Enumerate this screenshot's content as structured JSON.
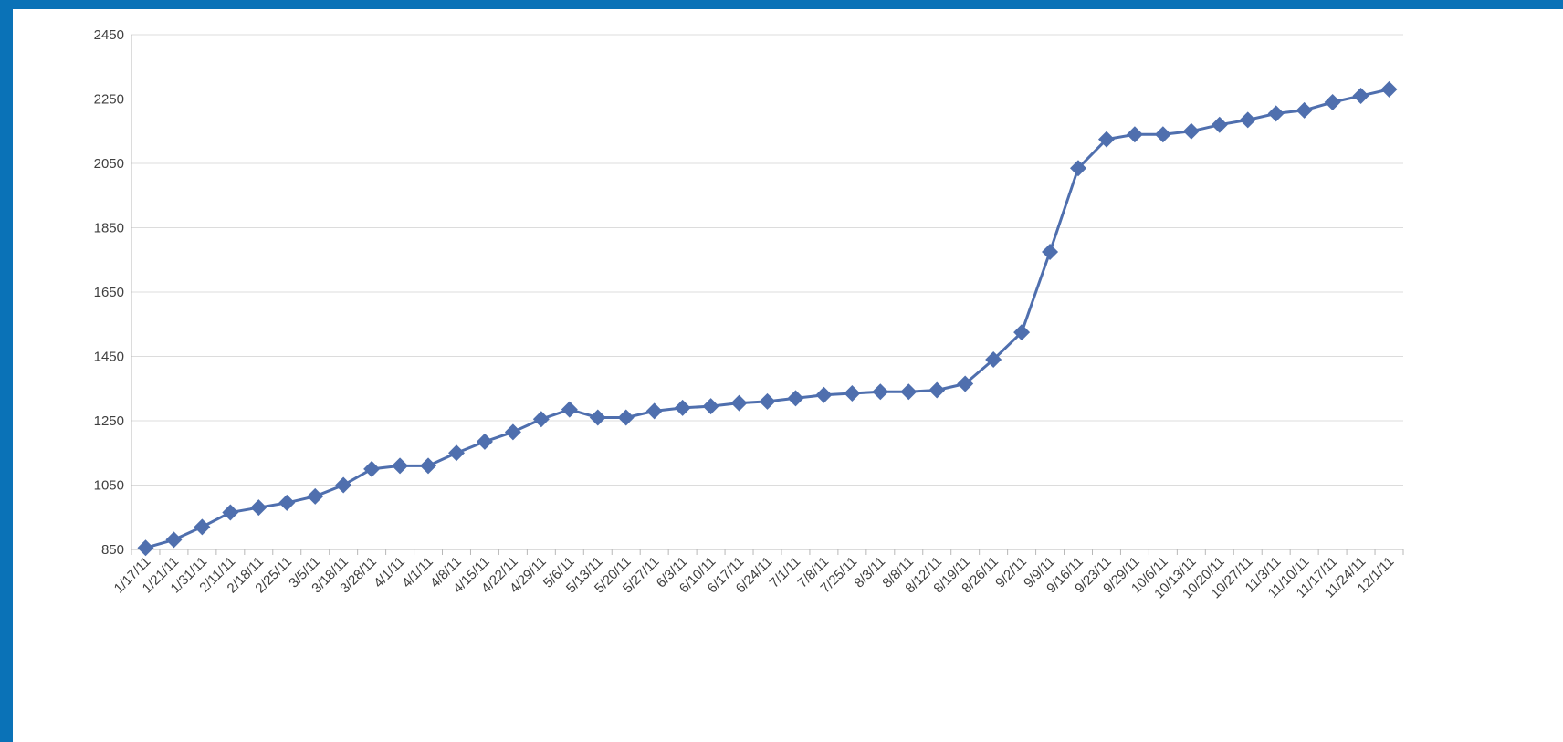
{
  "colors": {
    "frame": "#0a72b7",
    "background": "#ffffff",
    "series": "#4f6fae",
    "grid": "#dcdcdc",
    "axis": "#b8b8b8"
  },
  "chart_data": {
    "type": "line",
    "title": "",
    "xlabel": "",
    "ylabel": "",
    "ylim": [
      850,
      2450
    ],
    "yticks": [
      850,
      1050,
      1250,
      1450,
      1650,
      1850,
      2050,
      2250,
      2450
    ],
    "grid": true,
    "legend": "none",
    "marker": "diamond",
    "categories": [
      "1/17/11",
      "1/21/11",
      "1/31/11",
      "2/11/11",
      "2/18/11",
      "2/25/11",
      "3/5/11",
      "3/18/11",
      "3/28/11",
      "4/1/11",
      "4/1/11",
      "4/8/11",
      "4/15/11",
      "4/22/11",
      "4/29/11",
      "5/6/11",
      "5/13/11",
      "5/20/11",
      "5/27/11",
      "6/3/11",
      "6/10/11",
      "6/17/11",
      "6/24/11",
      "7/1/11",
      "7/8/11",
      "7/25/11",
      "8/3/11",
      "8/8/11",
      "8/12/11",
      "8/19/11",
      "8/26/11",
      "9/2/11",
      "9/9/11",
      "9/16/11",
      "9/23/11",
      "9/29/11",
      "10/6/11",
      "10/13/11",
      "10/20/11",
      "10/27/11",
      "11/3/11",
      "11/10/11",
      "11/17/11",
      "11/24/11",
      "12/1/11"
    ],
    "series": [
      {
        "values": [
          855,
          880,
          920,
          965,
          980,
          995,
          1015,
          1050,
          1100,
          1110,
          1110,
          1150,
          1185,
          1215,
          1255,
          1285,
          1260,
          1260,
          1280,
          1290,
          1295,
          1305,
          1310,
          1320,
          1330,
          1335,
          1340,
          1340,
          1345,
          1365,
          1440,
          1525,
          1775,
          2035,
          2125,
          2140,
          2140,
          2150,
          2170,
          2185,
          2205,
          2215,
          2240,
          2260,
          2280
        ]
      }
    ]
  }
}
